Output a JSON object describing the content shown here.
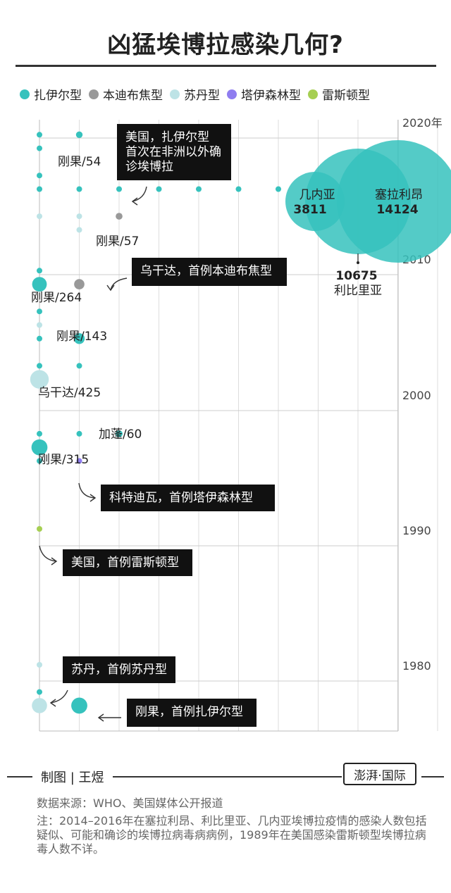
{
  "title": "凶猛埃博拉感染几何?",
  "legend": [
    {
      "label": "扎伊尔型",
      "color": "#36c2bd"
    },
    {
      "label": "本迪布焦型",
      "color": "#999999"
    },
    {
      "label": "苏丹型",
      "color": "#bde3e6"
    },
    {
      "label": "塔伊森林型",
      "color": "#8f7df0"
    },
    {
      "label": "雷斯顿型",
      "color": "#a6cf52"
    }
  ],
  "chart_data": {
    "type": "scatter",
    "title": "凶猛埃博拉感染几何?",
    "y_axis": {
      "ticks": [
        "2020年",
        "2010",
        "2000",
        "1990",
        "1980"
      ],
      "range": [
        1975,
        2020
      ]
    },
    "series": [
      {
        "name": "扎伊尔型",
        "color": "#36c2bd",
        "points": [
          {
            "year": 1976,
            "col": 2,
            "cases": 318
          },
          {
            "year": 1977,
            "col": 1,
            "cases": 1
          },
          {
            "year": 1994,
            "col": 1,
            "cases": 1
          },
          {
            "year": 1995,
            "col": 1,
            "cases": 315
          },
          {
            "year": 1996,
            "col": 1,
            "cases": 1
          },
          {
            "year": 1996,
            "col": 2,
            "cases": 1
          },
          {
            "year": 1996,
            "col": 3,
            "cases": 60
          },
          {
            "year": 2001,
            "col": 1,
            "cases": 1
          },
          {
            "year": 2001,
            "col": 2,
            "cases": 1
          },
          {
            "year": 2003,
            "col": 1,
            "cases": 1
          },
          {
            "year": 2003,
            "col": 2,
            "cases": 143
          },
          {
            "year": 2005,
            "col": 1,
            "cases": 1
          },
          {
            "year": 2007,
            "col": 1,
            "cases": 264
          },
          {
            "year": 2008,
            "col": 1,
            "cases": 1
          },
          {
            "year": 2014,
            "col": 1,
            "cases": 1
          },
          {
            "year": 2014,
            "col": 2,
            "cases": 1
          },
          {
            "year": 2014,
            "col": 3,
            "cases": 1
          },
          {
            "year": 2014,
            "col": 4,
            "cases": 1
          },
          {
            "year": 2014,
            "col": 5,
            "cases": 1
          },
          {
            "year": 2014,
            "col": 6,
            "cases": 1
          },
          {
            "year": 2014,
            "col": 7,
            "cases": 20
          },
          {
            "year": 2014,
            "col": 8,
            "cases": 3811
          },
          {
            "year": 2014,
            "col": 9,
            "cases": 10675
          },
          {
            "year": 2014,
            "col": 10,
            "cases": 14124
          },
          {
            "year": 2015,
            "col": 1,
            "cases": 1
          },
          {
            "year": 2017,
            "col": 1,
            "cases": 1
          },
          {
            "year": 2018,
            "col": 1,
            "cases": 1
          },
          {
            "year": 2018,
            "col": 2,
            "cases": 54
          }
        ]
      },
      {
        "name": "本迪布焦型",
        "color": "#999999",
        "points": [
          {
            "year": 2007,
            "col": 2,
            "cases": 131
          },
          {
            "year": 2012,
            "col": 3,
            "cases": 57
          }
        ]
      },
      {
        "name": "苏丹型",
        "color": "#bde3e6",
        "points": [
          {
            "year": 1976,
            "col": 1,
            "cases": 284
          },
          {
            "year": 1979,
            "col": 1,
            "cases": 1
          },
          {
            "year": 2000,
            "col": 1,
            "cases": 425
          },
          {
            "year": 2004,
            "col": 1,
            "cases": 1
          },
          {
            "year": 2011,
            "col": 2,
            "cases": 1
          },
          {
            "year": 2012,
            "col": 1,
            "cases": 1
          },
          {
            "year": 2012,
            "col": 2,
            "cases": 1
          }
        ]
      },
      {
        "name": "塔伊森林型",
        "color": "#8f7df0",
        "points": [
          {
            "year": 1994,
            "col": 2,
            "cases": 1
          }
        ]
      },
      {
        "name": "雷斯顿型",
        "color": "#a6cf52",
        "points": [
          {
            "year": 1989,
            "col": 1,
            "cases": 1
          }
        ]
      }
    ],
    "labels": [
      {
        "text": "刚果/54",
        "year": 2018,
        "col": 2
      },
      {
        "text": "刚果/57",
        "year": 2012,
        "col": 3
      },
      {
        "text": "刚果/264",
        "year": 2007,
        "col": 1
      },
      {
        "text": "刚果/143",
        "year": 2003,
        "col": 2
      },
      {
        "text": "乌干达/425",
        "year": 2000,
        "col": 1
      },
      {
        "text": "加蓬/60",
        "year": 1996,
        "col": 3
      },
      {
        "text": "刚果/315",
        "year": 1995,
        "col": 1
      }
    ],
    "bubble_labels": [
      {
        "name": "几内亚",
        "value": "3811"
      },
      {
        "name": "塞拉利昂",
        "value": "14124"
      },
      {
        "name": "利比里亚",
        "value": "10675"
      }
    ],
    "callouts": [
      {
        "lines": [
          "美国，扎伊尔型",
          "首次在非洲以外确",
          "诊埃博拉"
        ]
      },
      {
        "lines": [
          "乌干达，首例本迪布焦型"
        ]
      },
      {
        "lines": [
          "科特迪瓦，首例塔伊森林型"
        ]
      },
      {
        "lines": [
          "美国，首例雷斯顿型"
        ]
      },
      {
        "lines": [
          "苏丹，首例苏丹型"
        ]
      },
      {
        "lines": [
          "刚果，首例扎伊尔型"
        ]
      }
    ]
  },
  "footer": {
    "credit": "制图 | 王煜",
    "logo": "澎湃·国际",
    "source": "数据来源：WHO、美国媒体公开报道",
    "note": "注：2014–2016年在塞拉利昂、利比里亚、几内亚埃博拉疫情的感染人数包括疑似、可能和确诊的埃博拉病毒病病例，1989年在美国感染雷斯顿型埃博拉病毒人数不详。"
  }
}
